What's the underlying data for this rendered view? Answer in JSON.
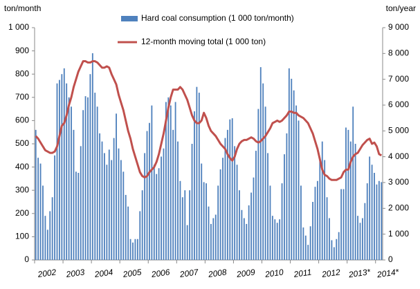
{
  "chart_data": {
    "type": "bar_line",
    "y_label": "ton/month",
    "y2_label": "ton/year",
    "categories": [
      "2002",
      null,
      null,
      null,
      null,
      null,
      null,
      null,
      null,
      null,
      null,
      null,
      "2003",
      null,
      null,
      null,
      null,
      null,
      null,
      null,
      null,
      null,
      null,
      null,
      "2004",
      null,
      null,
      null,
      null,
      null,
      null,
      null,
      null,
      null,
      null,
      null,
      "2005",
      null,
      null,
      null,
      null,
      null,
      null,
      null,
      null,
      null,
      null,
      null,
      "2006",
      null,
      null,
      null,
      null,
      null,
      null,
      null,
      null,
      null,
      null,
      null,
      "2007",
      null,
      null,
      null,
      null,
      null,
      null,
      null,
      null,
      null,
      null,
      null,
      "2008",
      null,
      null,
      null,
      null,
      null,
      null,
      null,
      null,
      null,
      null,
      null,
      "2009",
      null,
      null,
      null,
      null,
      null,
      null,
      null,
      null,
      null,
      null,
      null,
      "2010",
      null,
      null,
      null,
      null,
      null,
      null,
      null,
      null,
      null,
      null,
      null,
      "2011",
      null,
      null,
      null,
      null,
      null,
      null,
      null,
      null,
      null,
      null,
      null,
      "2012",
      null,
      null,
      null,
      null,
      null,
      null,
      null,
      null,
      null,
      null,
      null,
      "2013*",
      null,
      null,
      null,
      null,
      null,
      null,
      null,
      null,
      null,
      null,
      null,
      "2014*",
      null,
      null
    ],
    "series": [
      {
        "name": "Hard coal consumption (1 000 ton/month)",
        "type": "bar",
        "color": "#4f81bd",
        "values": [
          560,
          440,
          415,
          320,
          190,
          130,
          210,
          270,
          450,
          760,
          775,
          800,
          825,
          760,
          700,
          660,
          560,
          380,
          375,
          490,
          645,
          705,
          700,
          800,
          890,
          720,
          660,
          545,
          510,
          460,
          410,
          475,
          430,
          525,
          630,
          480,
          430,
          380,
          280,
          230,
          90,
          75,
          90,
          90,
          210,
          300,
          460,
          555,
          590,
          665,
          410,
          370,
          395,
          445,
          480,
          680,
          700,
          665,
          560,
          680,
          510,
          340,
          270,
          300,
          150,
          300,
          500,
          640,
          745,
          720,
          415,
          335,
          330,
          230,
          155,
          180,
          195,
          320,
          390,
          440,
          525,
          560,
          605,
          610,
          490,
          410,
          300,
          215,
          180,
          155,
          235,
          290,
          355,
          470,
          650,
          830,
          760,
          660,
          460,
          320,
          190,
          175,
          160,
          175,
          330,
          455,
          545,
          825,
          780,
          730,
          665,
          600,
          320,
          140,
          105,
          65,
          145,
          250,
          315,
          340,
          440,
          510,
          430,
          270,
          180,
          85,
          55,
          90,
          120,
          305,
          305,
          570,
          560,
          510,
          660,
          500,
          190,
          160,
          180,
          245,
          330,
          445,
          410,
          375,
          325,
          340,
          335
        ]
      },
      {
        "name": "12-month moving total (1 000 ton)",
        "type": "line",
        "axis": "y2",
        "color": "#c0504d",
        "values": [
          4800,
          4700,
          4550,
          4400,
          4250,
          4200,
          4150,
          4150,
          4200,
          4400,
          4800,
          5200,
          5300,
          5600,
          6000,
          6300,
          6700,
          7000,
          7300,
          7500,
          7700,
          7700,
          7650,
          7650,
          7700,
          7700,
          7650,
          7550,
          7450,
          7450,
          7500,
          7450,
          7200,
          7000,
          6800,
          6400,
          6100,
          5800,
          5400,
          5000,
          4700,
          4300,
          4000,
          3700,
          3400,
          3250,
          3200,
          3250,
          3400,
          3500,
          3600,
          3800,
          4100,
          4500,
          4900,
          5400,
          5900,
          6300,
          6600,
          6600,
          6600,
          6700,
          6600,
          6400,
          6200,
          5900,
          5600,
          5400,
          5300,
          5300,
          5400,
          5700,
          5500,
          5200,
          5000,
          4900,
          4800,
          4650,
          4500,
          4400,
          4300,
          4100,
          3950,
          3850,
          4000,
          4300,
          4500,
          4600,
          4650,
          4650,
          4700,
          4750,
          4700,
          4600,
          4550,
          4600,
          4700,
          4800,
          4950,
          5100,
          5300,
          5350,
          5400,
          5350,
          5400,
          5500,
          5600,
          5750,
          5750,
          5700,
          5700,
          5600,
          5550,
          5500,
          5400,
          5300,
          5100,
          4900,
          4600,
          4300,
          3900,
          3500,
          3300,
          3250,
          3150,
          3100,
          3100,
          3100,
          3150,
          3200,
          3400,
          3500,
          3500,
          3800,
          4000,
          4100,
          4150,
          4300,
          4450,
          4550,
          4650,
          4700,
          4500,
          4550,
          4400,
          4100,
          4050
        ]
      }
    ],
    "ylim": [
      0,
      1000
    ],
    "yticks": [
      0,
      100,
      200,
      300,
      400,
      500,
      600,
      700,
      800,
      900,
      {
        "value": 1000,
        "label": "1 000"
      }
    ],
    "y2lim": [
      0,
      9000
    ],
    "y2ticks": [
      0,
      {
        "value": 1000,
        "label": "1 000"
      },
      {
        "value": 2000,
        "label": "2 000"
      },
      {
        "value": 3000,
        "label": "3 000"
      },
      {
        "value": 4000,
        "label": "4 000"
      },
      {
        "value": 5000,
        "label": "5 000"
      },
      {
        "value": 6000,
        "label": "6 000"
      },
      {
        "value": 7000,
        "label": "7 000"
      },
      {
        "value": 8000,
        "label": "8 000"
      },
      {
        "value": 9000,
        "label": "9 000"
      }
    ],
    "grid": false
  }
}
